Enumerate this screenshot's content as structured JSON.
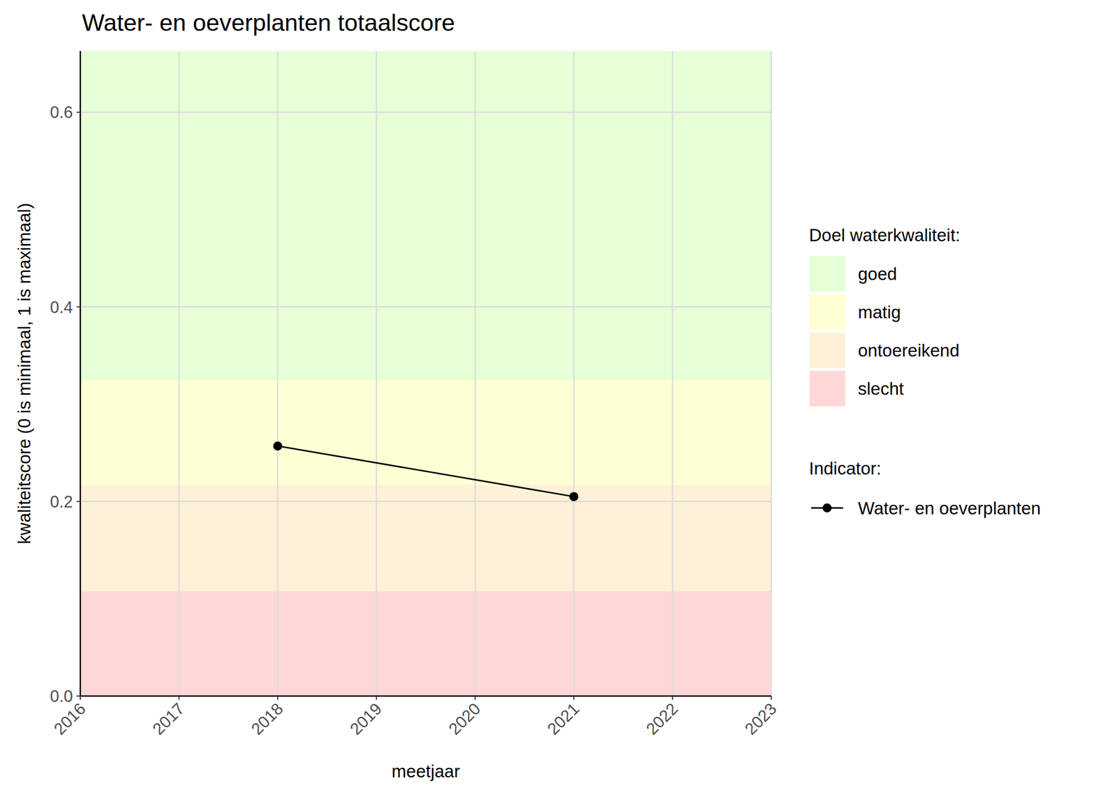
{
  "chart_data": {
    "type": "line",
    "title": "Water- en oeverplanten totaalscore",
    "x_label": "meetjaar",
    "y_label": "kwaliteitscore (0 is minimaal, 1 is maximaal)",
    "x": [
      2018,
      2021
    ],
    "series": [
      {
        "name": "Water- en oeverplanten",
        "color": "#000000",
        "marker": "circle",
        "line_style": "solid",
        "values": [
          0.257,
          0.205
        ]
      }
    ],
    "xlim": [
      2016,
      2023
    ],
    "xticks": [
      2016,
      2017,
      2018,
      2019,
      2020,
      2021,
      2022,
      2023
    ],
    "ylim": [
      0,
      0.663
    ],
    "yticks": [
      {
        "value": 0,
        "label": "0.0"
      },
      0.2,
      0.4,
      0.6
    ],
    "grid": true,
    "legend": "right",
    "legend_title": "Indicator:",
    "bands_title": "Doel waterkwaliteit:",
    "bands": [
      {
        "name": "goed",
        "color": "#e6ffd6",
        "from": 0.325
      },
      {
        "name": "matig",
        "color": "#ffffd6",
        "from": 0.217
      },
      {
        "name": "ontoereikend",
        "color": "#fff1d7",
        "from": 0.108
      },
      {
        "name": "slecht",
        "color": "#ffd7d7",
        "from": 0
      }
    ]
  }
}
